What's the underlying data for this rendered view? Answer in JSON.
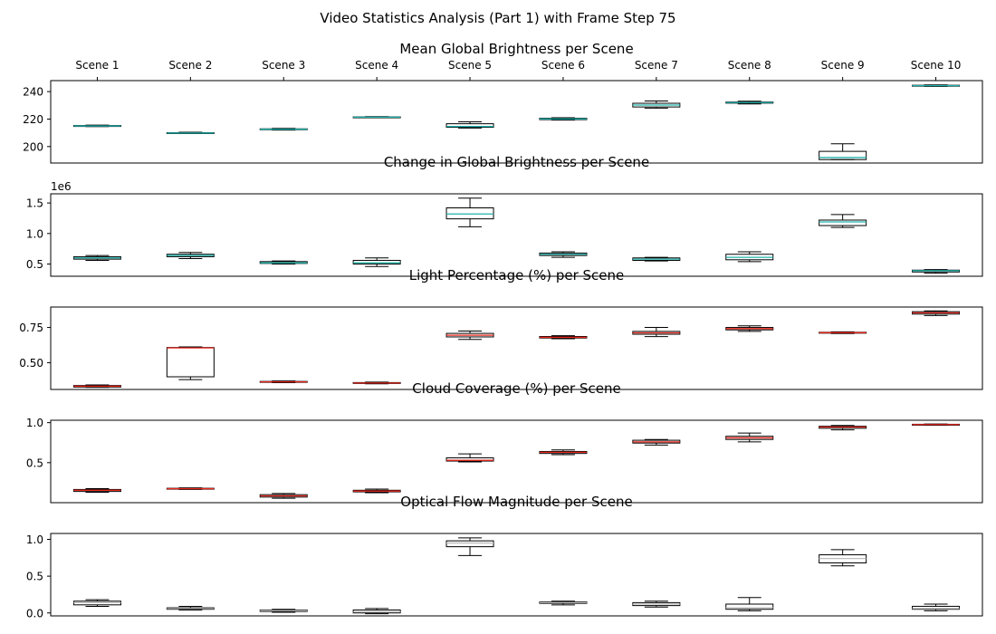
{
  "figure": {
    "suptitle": "Video Statistics Analysis (Part 1) with Frame Step 75"
  },
  "chart_data": [
    {
      "type": "box",
      "title": "Mean Global Brightness per Scene",
      "categories": [
        "Scene 1",
        "Scene 2",
        "Scene 3",
        "Scene 4",
        "Scene 5",
        "Scene 6",
        "Scene 7",
        "Scene 8",
        "Scene 9",
        "Scene 10"
      ],
      "category_axis_position": "top",
      "ylim": [
        188,
        248
      ],
      "yticks": [
        200,
        220,
        240
      ],
      "ytick_labels": [
        "200",
        "220",
        "240"
      ],
      "median_color": "#20b2aa",
      "boxes": [
        {
          "whislo": 214.5,
          "q1": 214.7,
          "med": 215.0,
          "q3": 215.3,
          "whishi": 215.6
        },
        {
          "whislo": 209.4,
          "q1": 209.6,
          "med": 209.8,
          "q3": 210.1,
          "whishi": 210.4
        },
        {
          "whislo": 212.0,
          "q1": 212.3,
          "med": 212.6,
          "q3": 212.9,
          "whishi": 213.2
        },
        {
          "whislo": 221.0,
          "q1": 221.2,
          "med": 221.4,
          "q3": 221.6,
          "whishi": 221.8
        },
        {
          "whislo": 213.5,
          "q1": 214.0,
          "med": 214.6,
          "q3": 216.6,
          "whishi": 218.0
        },
        {
          "whislo": 219.3,
          "q1": 219.6,
          "med": 220.1,
          "q3": 220.6,
          "whishi": 221.0
        },
        {
          "whislo": 228.0,
          "q1": 228.8,
          "med": 230.2,
          "q3": 231.5,
          "whishi": 233.2
        },
        {
          "whislo": 231.0,
          "q1": 231.6,
          "med": 232.0,
          "q3": 232.4,
          "whishi": 233.0
        },
        {
          "whislo": 190.5,
          "q1": 190.5,
          "med": 192.0,
          "q3": 196.5,
          "whishi": 202.0
        },
        {
          "whislo": 243.8,
          "q1": 244.0,
          "med": 244.3,
          "q3": 244.6,
          "whishi": 244.9
        }
      ]
    },
    {
      "type": "box",
      "title": "Change in Global Brightness per Scene",
      "categories": [
        "Scene 1",
        "Scene 2",
        "Scene 3",
        "Scene 4",
        "Scene 5",
        "Scene 6",
        "Scene 7",
        "Scene 8",
        "Scene 9",
        "Scene 10"
      ],
      "offset_label": "1e6",
      "ylim": [
        0.3,
        1.65
      ],
      "yticks": [
        0.5,
        1.0,
        1.5
      ],
      "ytick_labels": [
        "0.5",
        "1.0",
        "1.5"
      ],
      "median_color": "#20b2aa",
      "boxes": [
        {
          "whislo": 0.56,
          "q1": 0.58,
          "med": 0.6,
          "q3": 0.62,
          "whishi": 0.64
        },
        {
          "whislo": 0.59,
          "q1": 0.62,
          "med": 0.64,
          "q3": 0.66,
          "whishi": 0.69
        },
        {
          "whislo": 0.5,
          "q1": 0.51,
          "med": 0.52,
          "q3": 0.54,
          "whishi": 0.55
        },
        {
          "whislo": 0.46,
          "q1": 0.5,
          "med": 0.52,
          "q3": 0.56,
          "whishi": 0.6
        },
        {
          "whislo": 1.11,
          "q1": 1.24,
          "med": 1.32,
          "q3": 1.42,
          "whishi": 1.58
        },
        {
          "whislo": 0.61,
          "q1": 0.64,
          "med": 0.66,
          "q3": 0.68,
          "whishi": 0.7
        },
        {
          "whislo": 0.55,
          "q1": 0.56,
          "med": 0.58,
          "q3": 0.6,
          "whishi": 0.61
        },
        {
          "whislo": 0.54,
          "q1": 0.57,
          "med": 0.61,
          "q3": 0.66,
          "whishi": 0.7
        },
        {
          "whislo": 1.1,
          "q1": 1.13,
          "med": 1.19,
          "q3": 1.22,
          "whishi": 1.31
        },
        {
          "whislo": 0.35,
          "q1": 0.37,
          "med": 0.39,
          "q3": 0.4,
          "whishi": 0.41
        }
      ]
    },
    {
      "type": "box",
      "title": "Light Percentage (%) per Scene",
      "categories": [
        "Scene 1",
        "Scene 2",
        "Scene 3",
        "Scene 4",
        "Scene 5",
        "Scene 6",
        "Scene 7",
        "Scene 8",
        "Scene 9",
        "Scene 10"
      ],
      "ylim": [
        0.31,
        0.895
      ],
      "yticks": [
        0.5,
        0.75
      ],
      "ytick_labels": [
        "0.50",
        "0.75"
      ],
      "median_color": "#e8281e",
      "boxes": [
        {
          "whislo": 0.325,
          "q1": 0.327,
          "med": 0.333,
          "q3": 0.338,
          "whishi": 0.342
        },
        {
          "whislo": 0.38,
          "q1": 0.4,
          "med": 0.605,
          "q3": 0.608,
          "whishi": 0.612
        },
        {
          "whislo": 0.358,
          "q1": 0.361,
          "med": 0.364,
          "q3": 0.367,
          "whishi": 0.37
        },
        {
          "whislo": 0.35,
          "q1": 0.353,
          "med": 0.356,
          "q3": 0.359,
          "whishi": 0.362
        },
        {
          "whislo": 0.665,
          "q1": 0.683,
          "med": 0.695,
          "q3": 0.708,
          "whishi": 0.725
        },
        {
          "whislo": 0.67,
          "q1": 0.675,
          "med": 0.68,
          "q3": 0.686,
          "whishi": 0.692
        },
        {
          "whislo": 0.685,
          "q1": 0.702,
          "med": 0.712,
          "q3": 0.722,
          "whishi": 0.75
        },
        {
          "whislo": 0.722,
          "q1": 0.733,
          "med": 0.742,
          "q3": 0.75,
          "whishi": 0.762
        },
        {
          "whislo": 0.707,
          "q1": 0.71,
          "med": 0.713,
          "q3": 0.716,
          "whishi": 0.719
        },
        {
          "whislo": 0.835,
          "q1": 0.845,
          "med": 0.854,
          "q3": 0.862,
          "whishi": 0.868
        }
      ]
    },
    {
      "type": "box",
      "title": "Cloud Coverage (%) per Scene",
      "categories": [
        "Scene 1",
        "Scene 2",
        "Scene 3",
        "Scene 4",
        "Scene 5",
        "Scene 6",
        "Scene 7",
        "Scene 8",
        "Scene 9",
        "Scene 10"
      ],
      "ylim": [
        0.0,
        1.03
      ],
      "yticks": [
        0.5,
        1.0
      ],
      "ytick_labels": [
        "0.5",
        "1.0"
      ],
      "median_color": "#e8281e",
      "boxes": [
        {
          "whislo": 0.13,
          "q1": 0.14,
          "med": 0.155,
          "q3": 0.165,
          "whishi": 0.175
        },
        {
          "whislo": 0.165,
          "q1": 0.17,
          "med": 0.175,
          "q3": 0.18,
          "whishi": 0.185
        },
        {
          "whislo": 0.055,
          "q1": 0.07,
          "med": 0.085,
          "q3": 0.1,
          "whishi": 0.115
        },
        {
          "whislo": 0.125,
          "q1": 0.135,
          "med": 0.145,
          "q3": 0.155,
          "whishi": 0.17
        },
        {
          "whislo": 0.51,
          "q1": 0.52,
          "med": 0.53,
          "q3": 0.56,
          "whishi": 0.61
        },
        {
          "whislo": 0.6,
          "q1": 0.615,
          "med": 0.63,
          "q3": 0.64,
          "whishi": 0.66
        },
        {
          "whislo": 0.72,
          "q1": 0.745,
          "med": 0.76,
          "q3": 0.78,
          "whishi": 0.79
        },
        {
          "whislo": 0.76,
          "q1": 0.79,
          "med": 0.81,
          "q3": 0.83,
          "whishi": 0.87
        },
        {
          "whislo": 0.91,
          "q1": 0.93,
          "med": 0.945,
          "q3": 0.955,
          "whishi": 0.965
        },
        {
          "whislo": 0.968,
          "q1": 0.972,
          "med": 0.976,
          "q3": 0.98,
          "whishi": 0.984
        }
      ]
    },
    {
      "type": "box",
      "title": "Optical Flow Magnitude per Scene",
      "categories": [
        "Scene 1",
        "Scene 2",
        "Scene 3",
        "Scene 4",
        "Scene 5",
        "Scene 6",
        "Scene 7",
        "Scene 8",
        "Scene 9",
        "Scene 10"
      ],
      "ylim": [
        -0.04,
        1.08
      ],
      "yticks": [
        0.0,
        0.5,
        1.0
      ],
      "ytick_labels": [
        "0.0",
        "0.5",
        "1.0"
      ],
      "median_color": "#bdbdbd",
      "boxes": [
        {
          "whislo": 0.09,
          "q1": 0.11,
          "med": 0.14,
          "q3": 0.16,
          "whishi": 0.18
        },
        {
          "whislo": 0.04,
          "q1": 0.05,
          "med": 0.06,
          "q3": 0.07,
          "whishi": 0.09
        },
        {
          "whislo": 0.01,
          "q1": 0.02,
          "med": 0.03,
          "q3": 0.04,
          "whishi": 0.05
        },
        {
          "whislo": -0.01,
          "q1": 0.0,
          "med": 0.015,
          "q3": 0.04,
          "whishi": 0.06
        },
        {
          "whislo": 0.78,
          "q1": 0.9,
          "med": 0.95,
          "q3": 0.98,
          "whishi": 1.02
        },
        {
          "whislo": 0.11,
          "q1": 0.13,
          "med": 0.14,
          "q3": 0.15,
          "whishi": 0.16
        },
        {
          "whislo": 0.08,
          "q1": 0.1,
          "med": 0.12,
          "q3": 0.14,
          "whishi": 0.16
        },
        {
          "whislo": 0.03,
          "q1": 0.05,
          "med": 0.07,
          "q3": 0.12,
          "whishi": 0.21
        },
        {
          "whislo": 0.64,
          "q1": 0.68,
          "med": 0.74,
          "q3": 0.79,
          "whishi": 0.86
        },
        {
          "whislo": 0.03,
          "q1": 0.05,
          "med": 0.06,
          "q3": 0.09,
          "whishi": 0.12
        }
      ]
    }
  ]
}
